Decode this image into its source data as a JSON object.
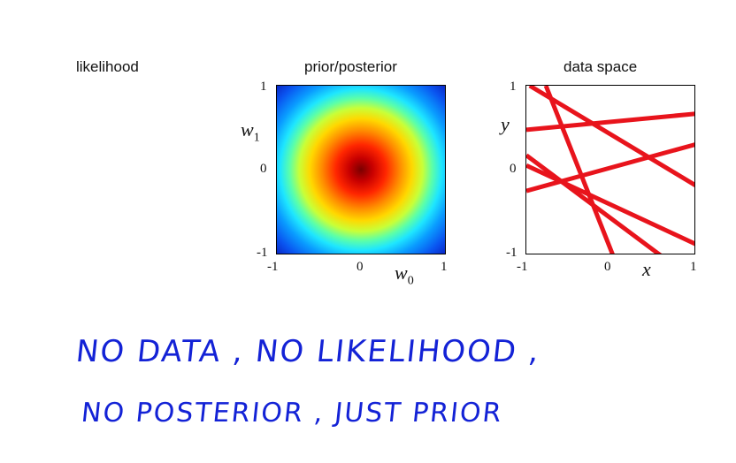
{
  "titles": {
    "likelihood": "likelihood",
    "prior_posterior": "prior/posterior",
    "data_space": "data space"
  },
  "prior_plot": {
    "y_symbol": "w",
    "y_subscript": "1",
    "x_symbol": "w",
    "x_subscript": "0",
    "y_ticks": [
      "1",
      "0",
      "-1"
    ],
    "x_ticks": [
      "-1",
      "0",
      "1"
    ],
    "colormap": "jet"
  },
  "data_plot": {
    "y_symbol": "y",
    "x_symbol": "x",
    "y_ticks": [
      "1",
      "0",
      "-1"
    ],
    "x_ticks": [
      "-1",
      "0",
      "1"
    ],
    "line_color": "#e8141c",
    "xlim": [
      -1,
      1
    ],
    "ylim": [
      -1,
      1
    ],
    "lines": [
      {
        "x": [
          -1.0,
          1.0
        ],
        "y": [
          0.48,
          0.67
        ]
      },
      {
        "x": [
          -1.0,
          1.0
        ],
        "y": [
          -0.24,
          0.31
        ]
      },
      {
        "x": [
          -0.96,
          1.0
        ],
        "y": [
          1.0,
          -0.18
        ]
      },
      {
        "x": [
          -0.77,
          0.02
        ],
        "y": [
          1.0,
          -1.0
        ]
      },
      {
        "x": [
          -1.0,
          0.58
        ],
        "y": [
          0.18,
          -1.0
        ]
      },
      {
        "x": [
          -1.0,
          1.0
        ],
        "y": [
          0.06,
          -0.87
        ]
      }
    ]
  },
  "handwritten": {
    "line1": "NO  DATA  ,  NO  LIKELIHOOD ,",
    "line2": "NO  POSTERIOR ,  JUST  PRIOR",
    "color": "#1322d6"
  }
}
